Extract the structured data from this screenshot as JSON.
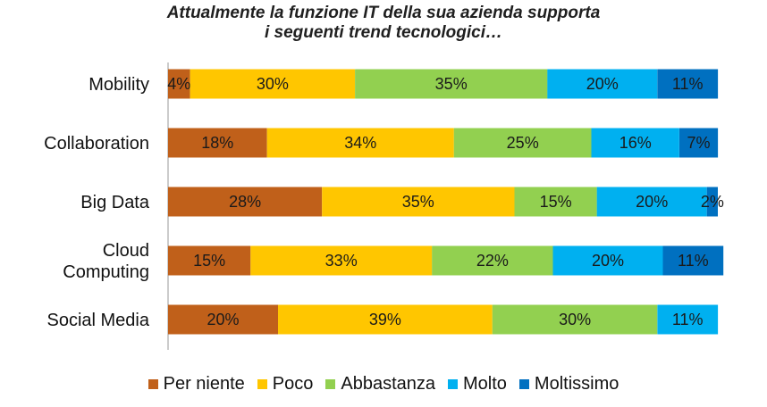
{
  "chart_data": {
    "type": "bar",
    "orientation": "horizontal",
    "stacked": true,
    "title_lines": [
      "Attualmente la funzione IT della sua azienda supporta",
      "i seguenti trend tecnologici…"
    ],
    "categories": [
      [
        "Mobility"
      ],
      [
        "Collaboration"
      ],
      [
        "Big Data"
      ],
      [
        "Cloud",
        "Computing"
      ],
      [
        "Social Media"
      ]
    ],
    "series": [
      {
        "name": "Per niente",
        "color": "#c0601a",
        "values": [
          4,
          18,
          28,
          15,
          20
        ]
      },
      {
        "name": "Poco",
        "color": "#ffc600",
        "values": [
          30,
          34,
          35,
          33,
          39
        ]
      },
      {
        "name": "Abbastanza",
        "color": "#92d050",
        "values": [
          35,
          25,
          15,
          22,
          30
        ]
      },
      {
        "name": "Molto",
        "color": "#00b0f0",
        "values": [
          20,
          16,
          20,
          20,
          11
        ]
      },
      {
        "name": "Moltissimo",
        "color": "#0070c0",
        "values": [
          11,
          7,
          2,
          11,
          0
        ]
      }
    ],
    "value_suffix": "%",
    "legend_position": "bottom",
    "grid": false
  }
}
